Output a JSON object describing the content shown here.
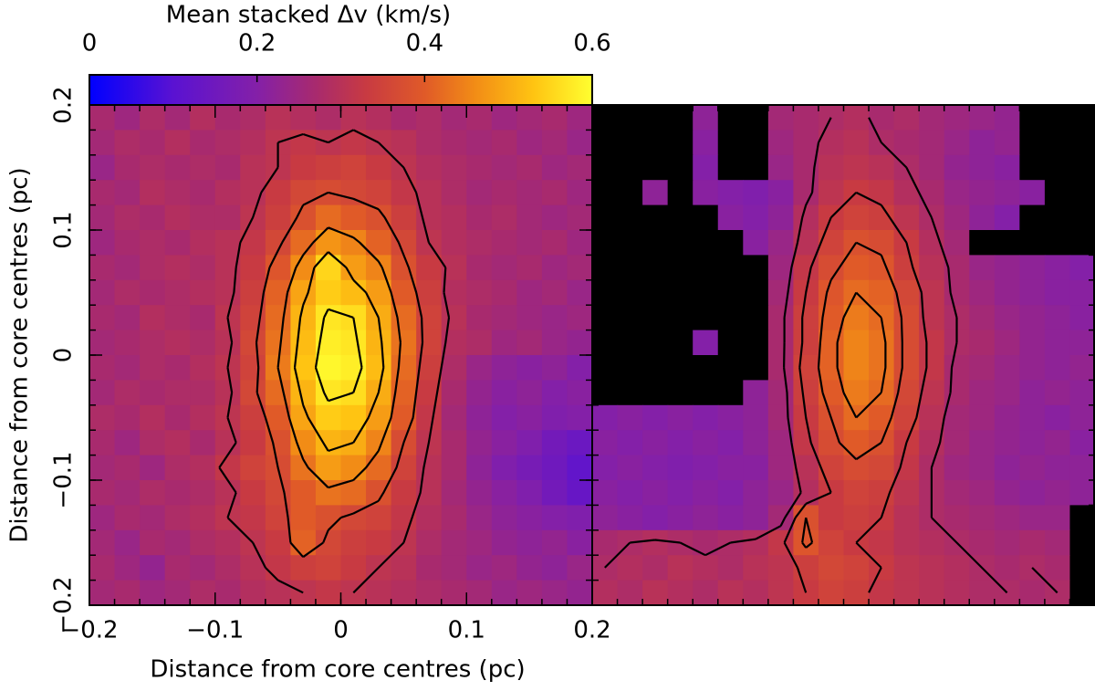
{
  "chart_data": [
    {
      "type": "heatmap",
      "title": "Mean stacked Δv (km/s)",
      "xlabel": "Distance from core centres (pc)",
      "ylabel": "Distance from core centres (pc)",
      "xlim": [
        -0.2,
        0.2
      ],
      "ylim": [
        -0.2,
        0.2
      ],
      "xticks": [
        {
          "value": -0.2,
          "label": "−0.2"
        },
        {
          "value": -0.1,
          "label": "−0.1"
        },
        0,
        0.1,
        0.2
      ],
      "yticks": [
        {
          "value": -0.2,
          "label": "−0.2"
        },
        {
          "value": -0.1,
          "label": "−0.1"
        },
        0,
        0.1,
        0.2
      ],
      "minor_tick_step": 0.02,
      "zlim": [
        0,
        0.6
      ],
      "colorbar_ticks": [
        0,
        0.2,
        0.4,
        0.6
      ],
      "colormap": [
        [
          0,
          "#0000ff"
        ],
        [
          0.1,
          "#5a12d2"
        ],
        [
          0.2,
          "#8420a8"
        ],
        [
          0.27,
          "#a82a6e"
        ],
        [
          0.33,
          "#c83a42"
        ],
        [
          0.4,
          "#e05a28"
        ],
        [
          0.46,
          "#f28c16"
        ],
        [
          0.53,
          "#ffc412"
        ],
        [
          0.6,
          "#ffff30"
        ]
      ],
      "null_color": "#000000",
      "contour_color": "#000000",
      "contour_levels": [
        0.31,
        0.37,
        0.44,
        0.5,
        0.56
      ],
      "z": [
        [
          0.27,
          0.25,
          0.28,
          0.26,
          0.29,
          0.27,
          0.28,
          0.3,
          0.29,
          0.28,
          0.3,
          0.29,
          0.27,
          0.28,
          0.26,
          0.27,
          0.25,
          0.26,
          0.27,
          0.25
        ],
        [
          0.26,
          0.28,
          0.27,
          0.29,
          0.27,
          0.28,
          0.29,
          0.31,
          0.32,
          0.31,
          0.32,
          0.31,
          0.3,
          0.28,
          0.27,
          0.26,
          0.27,
          0.25,
          0.26,
          0.24
        ],
        [
          0.24,
          0.27,
          0.28,
          0.27,
          0.28,
          0.27,
          0.3,
          0.31,
          0.33,
          0.34,
          0.35,
          0.33,
          0.31,
          0.29,
          0.28,
          0.27,
          0.26,
          0.27,
          0.25,
          0.26
        ],
        [
          0.27,
          0.26,
          0.29,
          0.28,
          0.27,
          0.29,
          0.3,
          0.33,
          0.36,
          0.37,
          0.36,
          0.35,
          0.32,
          0.3,
          0.28,
          0.26,
          0.27,
          0.26,
          0.27,
          0.25
        ],
        [
          0.26,
          0.28,
          0.27,
          0.29,
          0.28,
          0.28,
          0.31,
          0.34,
          0.38,
          0.42,
          0.4,
          0.38,
          0.34,
          0.3,
          0.29,
          0.27,
          0.28,
          0.26,
          0.25,
          0.26
        ],
        [
          0.25,
          0.27,
          0.28,
          0.27,
          0.29,
          0.3,
          0.32,
          0.36,
          0.42,
          0.47,
          0.45,
          0.41,
          0.36,
          0.31,
          0.29,
          0.28,
          0.27,
          0.26,
          0.27,
          0.25
        ],
        [
          0.27,
          0.26,
          0.28,
          0.29,
          0.28,
          0.3,
          0.33,
          0.39,
          0.46,
          0.55,
          0.48,
          0.45,
          0.38,
          0.33,
          0.3,
          0.27,
          0.26,
          0.27,
          0.25,
          0.26
        ],
        [
          0.26,
          0.28,
          0.27,
          0.28,
          0.29,
          0.3,
          0.34,
          0.41,
          0.49,
          0.54,
          0.52,
          0.48,
          0.4,
          0.34,
          0.29,
          0.28,
          0.27,
          0.25,
          0.26,
          0.24
        ],
        [
          0.27,
          0.26,
          0.29,
          0.28,
          0.27,
          0.31,
          0.35,
          0.42,
          0.51,
          0.57,
          0.56,
          0.5,
          0.42,
          0.35,
          0.3,
          0.27,
          0.26,
          0.25,
          0.24,
          0.25
        ],
        [
          0.26,
          0.27,
          0.28,
          0.29,
          0.28,
          0.3,
          0.36,
          0.43,
          0.52,
          0.58,
          0.57,
          0.51,
          0.43,
          0.35,
          0.29,
          0.28,
          0.25,
          0.26,
          0.24,
          0.23
        ],
        [
          0.27,
          0.26,
          0.28,
          0.27,
          0.29,
          0.31,
          0.35,
          0.44,
          0.53,
          0.59,
          0.58,
          0.52,
          0.42,
          0.34,
          0.28,
          0.24,
          0.22,
          0.21,
          0.22,
          0.2
        ],
        [
          0.26,
          0.28,
          0.27,
          0.28,
          0.28,
          0.3,
          0.36,
          0.42,
          0.51,
          0.57,
          0.56,
          0.5,
          0.41,
          0.33,
          0.27,
          0.23,
          0.21,
          0.22,
          0.2,
          0.21
        ],
        [
          0.28,
          0.27,
          0.29,
          0.27,
          0.29,
          0.31,
          0.34,
          0.4,
          0.49,
          0.54,
          0.53,
          0.48,
          0.4,
          0.32,
          0.26,
          0.22,
          0.2,
          0.21,
          0.19,
          0.2
        ],
        [
          0.27,
          0.25,
          0.28,
          0.29,
          0.27,
          0.3,
          0.33,
          0.38,
          0.46,
          0.51,
          0.5,
          0.45,
          0.37,
          0.31,
          0.27,
          0.23,
          0.21,
          0.19,
          0.16,
          0.14
        ],
        [
          0.26,
          0.27,
          0.25,
          0.28,
          0.29,
          0.32,
          0.35,
          0.37,
          0.43,
          0.48,
          0.46,
          0.42,
          0.35,
          0.3,
          0.27,
          0.22,
          0.19,
          0.17,
          0.15,
          0.12
        ],
        [
          0.27,
          0.26,
          0.28,
          0.27,
          0.28,
          0.3,
          0.33,
          0.36,
          0.4,
          0.43,
          0.42,
          0.38,
          0.33,
          0.3,
          0.26,
          0.23,
          0.21,
          0.19,
          0.16,
          0.13
        ],
        [
          0.25,
          0.27,
          0.26,
          0.28,
          0.29,
          0.31,
          0.32,
          0.35,
          0.4,
          0.38,
          0.36,
          0.35,
          0.32,
          0.29,
          0.27,
          0.24,
          0.22,
          0.21,
          0.2,
          0.19
        ],
        [
          0.26,
          0.24,
          0.27,
          0.26,
          0.28,
          0.29,
          0.31,
          0.33,
          0.41,
          0.36,
          0.34,
          0.33,
          0.31,
          0.28,
          0.26,
          0.25,
          0.23,
          0.22,
          0.23,
          0.21
        ],
        [
          0.27,
          0.25,
          0.23,
          0.27,
          0.26,
          0.28,
          0.3,
          0.32,
          0.34,
          0.35,
          0.33,
          0.31,
          0.3,
          0.27,
          0.26,
          0.24,
          0.25,
          0.23,
          0.22,
          0.24
        ],
        [
          0.26,
          0.27,
          0.25,
          0.26,
          0.28,
          0.27,
          0.29,
          0.3,
          0.31,
          0.32,
          0.31,
          0.3,
          0.29,
          0.28,
          0.27,
          0.26,
          0.24,
          0.25,
          0.24,
          0.23
        ]
      ]
    },
    {
      "type": "heatmap",
      "xlim": [
        -0.2,
        0.2
      ],
      "ylim": [
        -0.2,
        0.2
      ],
      "minor_tick_step": 0.02,
      "null_color": "#000000",
      "contour_color": "#000000",
      "contour_levels": [
        0.28,
        0.33,
        0.38,
        0.42
      ],
      "z": [
        [
          null,
          null,
          null,
          null,
          0.22,
          null,
          null,
          0.26,
          0.27,
          0.28,
          0.29,
          0.27,
          0.28,
          0.26,
          0.25,
          0.24,
          0.23,
          null,
          null,
          null
        ],
        [
          null,
          null,
          null,
          null,
          0.21,
          null,
          null,
          0.25,
          0.27,
          0.29,
          0.3,
          0.28,
          0.27,
          0.26,
          0.24,
          0.22,
          0.23,
          null,
          null,
          null
        ],
        [
          null,
          null,
          null,
          null,
          0.2,
          null,
          null,
          0.24,
          0.27,
          0.3,
          0.31,
          0.3,
          0.28,
          0.26,
          0.23,
          0.22,
          0.21,
          null,
          null,
          null
        ],
        [
          null,
          null,
          0.22,
          null,
          0.21,
          0.2,
          0.19,
          0.21,
          0.27,
          0.31,
          0.33,
          0.32,
          0.29,
          0.27,
          0.24,
          0.23,
          0.22,
          0.21,
          null,
          null
        ],
        [
          null,
          null,
          null,
          null,
          null,
          0.21,
          0.2,
          0.22,
          0.29,
          0.33,
          0.35,
          0.34,
          0.31,
          0.28,
          0.25,
          0.22,
          0.2,
          null,
          null,
          null
        ],
        [
          null,
          null,
          null,
          null,
          null,
          null,
          0.21,
          0.24,
          0.3,
          0.35,
          0.38,
          0.37,
          0.33,
          0.29,
          0.26,
          null,
          null,
          null,
          null,
          null
        ],
        [
          null,
          null,
          null,
          null,
          null,
          null,
          null,
          0.25,
          0.32,
          0.37,
          0.4,
          0.39,
          0.34,
          0.3,
          0.27,
          0.24,
          0.23,
          0.22,
          0.21,
          0.2
        ],
        [
          null,
          null,
          null,
          null,
          null,
          null,
          null,
          0.26,
          0.33,
          0.39,
          0.42,
          0.41,
          0.36,
          0.31,
          0.27,
          0.25,
          0.23,
          0.22,
          0.21,
          0.21
        ],
        [
          null,
          null,
          null,
          null,
          null,
          null,
          null,
          0.27,
          0.34,
          0.4,
          0.44,
          0.42,
          0.37,
          0.31,
          0.28,
          0.26,
          0.24,
          0.23,
          0.22,
          0.21
        ],
        [
          null,
          null,
          null,
          null,
          0.2,
          null,
          null,
          0.27,
          0.34,
          0.41,
          0.45,
          0.43,
          0.37,
          0.32,
          0.28,
          0.27,
          0.25,
          0.23,
          0.22,
          0.22
        ],
        [
          null,
          null,
          null,
          null,
          null,
          null,
          null,
          0.27,
          0.35,
          0.41,
          0.45,
          0.43,
          0.37,
          0.32,
          0.27,
          0.26,
          0.24,
          0.23,
          0.22,
          0.23
        ],
        [
          null,
          null,
          null,
          null,
          null,
          null,
          0.22,
          0.26,
          0.34,
          0.4,
          0.44,
          0.42,
          0.36,
          0.31,
          0.27,
          0.25,
          0.24,
          0.22,
          0.23,
          0.22
        ],
        [
          0.2,
          0.21,
          0.2,
          0.21,
          0.2,
          0.21,
          0.22,
          0.26,
          0.33,
          0.38,
          0.42,
          0.4,
          0.35,
          0.3,
          0.26,
          0.25,
          0.23,
          0.22,
          0.21,
          0.22
        ],
        [
          0.21,
          0.2,
          0.21,
          0.2,
          0.21,
          0.2,
          0.22,
          0.25,
          0.32,
          0.37,
          0.4,
          0.38,
          0.33,
          0.29,
          0.26,
          0.24,
          0.23,
          0.22,
          0.23,
          0.21
        ],
        [
          0.2,
          0.21,
          0.2,
          0.19,
          0.2,
          0.21,
          0.21,
          0.25,
          0.3,
          0.35,
          0.37,
          0.36,
          0.32,
          0.28,
          0.25,
          0.24,
          0.22,
          0.23,
          0.22,
          0.22
        ],
        [
          0.21,
          0.2,
          0.21,
          0.2,
          0.21,
          0.2,
          0.22,
          0.24,
          0.29,
          0.33,
          0.35,
          0.34,
          0.31,
          0.28,
          0.26,
          0.25,
          0.23,
          0.22,
          0.23,
          0.22
        ],
        [
          0.22,
          0.21,
          0.2,
          0.21,
          0.22,
          0.21,
          0.22,
          0.26,
          0.38,
          0.33,
          0.34,
          0.33,
          0.3,
          0.28,
          0.27,
          0.26,
          0.25,
          0.24,
          0.24,
          null
        ],
        [
          0.27,
          0.28,
          0.29,
          0.28,
          0.27,
          0.28,
          0.29,
          0.32,
          0.39,
          0.35,
          0.33,
          0.32,
          0.3,
          0.29,
          0.28,
          0.27,
          0.26,
          0.27,
          0.26,
          null
        ],
        [
          0.28,
          0.29,
          0.28,
          0.3,
          0.29,
          0.28,
          0.3,
          0.31,
          0.34,
          0.36,
          0.35,
          0.33,
          0.31,
          0.3,
          0.29,
          0.28,
          0.27,
          0.28,
          0.27,
          null
        ],
        [
          0.29,
          0.28,
          0.3,
          0.29,
          0.28,
          0.3,
          0.29,
          0.31,
          0.33,
          0.35,
          0.34,
          0.32,
          0.31,
          0.3,
          0.29,
          0.28,
          0.28,
          0.27,
          0.28,
          null
        ]
      ]
    }
  ]
}
